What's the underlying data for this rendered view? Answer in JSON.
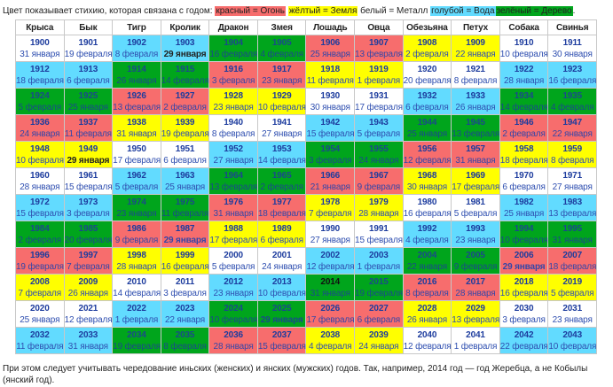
{
  "legend": {
    "intro": "Цвет показывает стихию, которая связана с годом:",
    "fire": "красный = Огонь",
    "earth": "жёлтый = Земля",
    "metal": "белый = Металл",
    "water": "голубой = Вода",
    "wood": "зелёный = Дерево",
    "end": "."
  },
  "colors": {
    "fire": "#f76d6d",
    "earth": "#ffff00",
    "metal": "#ffffff",
    "water": "#62dbff",
    "wood": "#00a51c"
  },
  "headers": [
    "Крыса",
    "Бык",
    "Тигр",
    "Кролик",
    "Дракон",
    "Змея",
    "Лошадь",
    "Овца",
    "Обезьяна",
    "Петух",
    "Собака",
    "Свинья"
  ],
  "rows": [
    [
      {
        "y": "1900",
        "d": "31 января"
      },
      {
        "y": "1901",
        "d": "19 февраля"
      },
      {
        "y": "1902",
        "d": "8 февраля"
      },
      {
        "y": "1903",
        "d": "29 января",
        "b": true
      },
      {
        "y": "1904",
        "d": "16 февраля"
      },
      {
        "y": "1905",
        "d": "4 февраля"
      },
      {
        "y": "1906",
        "d": "25 января"
      },
      {
        "y": "1907",
        "d": "13 февраля"
      },
      {
        "y": "1908",
        "d": "2 февраля"
      },
      {
        "y": "1909",
        "d": "22 января"
      },
      {
        "y": "1910",
        "d": "10 февраля"
      },
      {
        "y": "1911",
        "d": "30 января"
      }
    ],
    [
      {
        "y": "1912",
        "d": "18 февраля"
      },
      {
        "y": "1913",
        "d": "6 февраля"
      },
      {
        "y": "1914",
        "d": "26 января"
      },
      {
        "y": "1915",
        "d": "14 февраля"
      },
      {
        "y": "1916",
        "d": "3 февраля"
      },
      {
        "y": "1917",
        "d": "23 января"
      },
      {
        "y": "1918",
        "d": "11 февраля"
      },
      {
        "y": "1919",
        "d": "1 февраля"
      },
      {
        "y": "1920",
        "d": "20 февраля"
      },
      {
        "y": "1921",
        "d": "8 февраля"
      },
      {
        "y": "1922",
        "d": "28 января"
      },
      {
        "y": "1923",
        "d": "16 февраля"
      }
    ],
    [
      {
        "y": "1924",
        "d": "5 февраля"
      },
      {
        "y": "1925",
        "d": "25 января"
      },
      {
        "y": "1926",
        "d": "13 февраля"
      },
      {
        "y": "1927",
        "d": "2 февраля"
      },
      {
        "y": "1928",
        "d": "23 января"
      },
      {
        "y": "1929",
        "d": "10 февраля"
      },
      {
        "y": "1930",
        "d": "30 января"
      },
      {
        "y": "1931",
        "d": "17 февраля"
      },
      {
        "y": "1932",
        "d": "6 февраля"
      },
      {
        "y": "1933",
        "d": "26 января"
      },
      {
        "y": "1934",
        "d": "14 февраля"
      },
      {
        "y": "1935",
        "d": "4 февраля"
      }
    ],
    [
      {
        "y": "1936",
        "d": "24 января"
      },
      {
        "y": "1937",
        "d": "11 февраля"
      },
      {
        "y": "1938",
        "d": "31 января"
      },
      {
        "y": "1939",
        "d": "19 февраля"
      },
      {
        "y": "1940",
        "d": "8 февраля"
      },
      {
        "y": "1941",
        "d": "27 января"
      },
      {
        "y": "1942",
        "d": "15 февраля"
      },
      {
        "y": "1943",
        "d": "5 февраля"
      },
      {
        "y": "1944",
        "d": "25 января"
      },
      {
        "y": "1945",
        "d": "13 февраля"
      },
      {
        "y": "1946",
        "d": "2 февраля"
      },
      {
        "y": "1947",
        "d": "22 января"
      }
    ],
    [
      {
        "y": "1948",
        "d": "10 февраля"
      },
      {
        "y": "1949",
        "d": "29 января",
        "b": true
      },
      {
        "y": "1950",
        "d": "17 февраля"
      },
      {
        "y": "1951",
        "d": "6 февраля"
      },
      {
        "y": "1952",
        "d": "27 января"
      },
      {
        "y": "1953",
        "d": "14 февраля"
      },
      {
        "y": "1954",
        "d": "3 февраля"
      },
      {
        "y": "1955",
        "d": "24 января"
      },
      {
        "y": "1956",
        "d": "12 февраля"
      },
      {
        "y": "1957",
        "d": "31 января"
      },
      {
        "y": "1958",
        "d": "18 февраля"
      },
      {
        "y": "1959",
        "d": "8 февраля"
      }
    ],
    [
      {
        "y": "1960",
        "d": "28 января"
      },
      {
        "y": "1961",
        "d": "15 февраля"
      },
      {
        "y": "1962",
        "d": "5 февраля"
      },
      {
        "y": "1963",
        "d": "25 января"
      },
      {
        "y": "1964",
        "d": "13 февраля"
      },
      {
        "y": "1965",
        "d": "2 февраля"
      },
      {
        "y": "1966",
        "d": "21 января"
      },
      {
        "y": "1967",
        "d": "9 февраля"
      },
      {
        "y": "1968",
        "d": "30 января"
      },
      {
        "y": "1969",
        "d": "17 февраля"
      },
      {
        "y": "1970",
        "d": "6 февраля"
      },
      {
        "y": "1971",
        "d": "27 января"
      }
    ],
    [
      {
        "y": "1972",
        "d": "15 февраля"
      },
      {
        "y": "1973",
        "d": "3 февраля"
      },
      {
        "y": "1974",
        "d": "23 января"
      },
      {
        "y": "1975",
        "d": "11 февраля"
      },
      {
        "y": "1976",
        "d": "31 января"
      },
      {
        "y": "1977",
        "d": "18 февраля"
      },
      {
        "y": "1978",
        "d": "7 февраля"
      },
      {
        "y": "1979",
        "d": "28 января"
      },
      {
        "y": "1980",
        "d": "16 февраля"
      },
      {
        "y": "1981",
        "d": "5 февраля"
      },
      {
        "y": "1982",
        "d": "25 января"
      },
      {
        "y": "1983",
        "d": "13 февраля"
      }
    ],
    [
      {
        "y": "1984",
        "d": "2 февраля"
      },
      {
        "y": "1985",
        "d": "20 февраля"
      },
      {
        "y": "1986",
        "d": "9 февраля"
      },
      {
        "y": "1987",
        "d": "29 января",
        "b": true
      },
      {
        "y": "1988",
        "d": "17 февраля"
      },
      {
        "y": "1989",
        "d": "6 февраля"
      },
      {
        "y": "1990",
        "d": "27 января"
      },
      {
        "y": "1991",
        "d": "15 февраля"
      },
      {
        "y": "1992",
        "d": "4 февраля"
      },
      {
        "y": "1993",
        "d": "23 января"
      },
      {
        "y": "1994",
        "d": "10 февраля"
      },
      {
        "y": "1995",
        "d": "31 января"
      }
    ],
    [
      {
        "y": "1996",
        "d": "19 февраля"
      },
      {
        "y": "1997",
        "d": "7 февраля"
      },
      {
        "y": "1998",
        "d": "28 января"
      },
      {
        "y": "1999",
        "d": "16 февраля"
      },
      {
        "y": "2000",
        "d": "5 февраля"
      },
      {
        "y": "2001",
        "d": "24 января"
      },
      {
        "y": "2002",
        "d": "12 февраля"
      },
      {
        "y": "2003",
        "d": "1 февраля"
      },
      {
        "y": "2004",
        "d": "22 января"
      },
      {
        "y": "2005",
        "d": "9 февраля"
      },
      {
        "y": "2006",
        "d": "29 января",
        "b": true
      },
      {
        "y": "2007",
        "d": "18 февраля"
      }
    ],
    [
      {
        "y": "2008",
        "d": "7 февраля"
      },
      {
        "y": "2009",
        "d": "26 января"
      },
      {
        "y": "2010",
        "d": "14 февраля"
      },
      {
        "y": "2011",
        "d": "3 февраля"
      },
      {
        "y": "2012",
        "d": "23 января"
      },
      {
        "y": "2013",
        "d": "10 февраля"
      },
      {
        "y": "2014",
        "d": "31 января",
        "by": true
      },
      {
        "y": "2015",
        "d": "19 февраля"
      },
      {
        "y": "2016",
        "d": "8 февраля"
      },
      {
        "y": "2017",
        "d": "28 января"
      },
      {
        "y": "2018",
        "d": "16 февраля"
      },
      {
        "y": "2019",
        "d": "5 февраля"
      }
    ],
    [
      {
        "y": "2020",
        "d": "25 января"
      },
      {
        "y": "2021",
        "d": "12 февраля"
      },
      {
        "y": "2022",
        "d": "1 февраля"
      },
      {
        "y": "2023",
        "d": "22 января"
      },
      {
        "y": "2024",
        "d": "10 февраля"
      },
      {
        "y": "2025",
        "d": "29 января",
        "b": true
      },
      {
        "y": "2026",
        "d": "17 февраля"
      },
      {
        "y": "2027",
        "d": "6 февраля"
      },
      {
        "y": "2028",
        "d": "26 января"
      },
      {
        "y": "2029",
        "d": "13 февраля"
      },
      {
        "y": "2030",
        "d": "3 февраля"
      },
      {
        "y": "2031",
        "d": "23 января"
      }
    ],
    [
      {
        "y": "2032",
        "d": "11 февраля"
      },
      {
        "y": "2033",
        "d": "31 января"
      },
      {
        "y": "2034",
        "d": "19 февраля"
      },
      {
        "y": "2035",
        "d": "8 февраля"
      },
      {
        "y": "2036",
        "d": "28 января"
      },
      {
        "y": "2037",
        "d": "15 февраля"
      },
      {
        "y": "2038",
        "d": "4 февраля"
      },
      {
        "y": "2039",
        "d": "24 января"
      },
      {
        "y": "2040",
        "d": "12 февраля"
      },
      {
        "y": "2041",
        "d": "1 февраля"
      },
      {
        "y": "2042",
        "d": "22 февраля"
      },
      {
        "y": "2043",
        "d": "10 февраля"
      }
    ]
  ],
  "footer": "При этом следует учитывать чередование иньских (женских) и янских (мужских) годов. Так, например, 2014 год — год Жеребца, а не Кобылы (янский год)."
}
